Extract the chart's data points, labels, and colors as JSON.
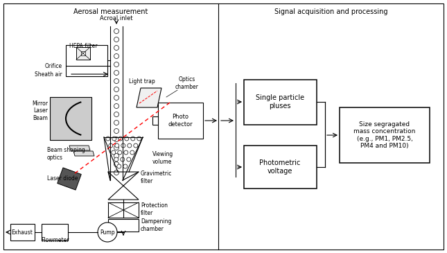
{
  "title_left": "Aerosal measurement",
  "title_right": "Signal acquisition and processing",
  "bg_color": "#ffffff",
  "line_color": "#000000",
  "labels": {
    "aerosol_inlet": "Acroal inlet",
    "hepa_filter": "HEPA filter",
    "orifice": "Orifice",
    "sheath_air": "Sheath air",
    "light_trap": "Light trap",
    "optics_chamber": "Optics\nchamber",
    "mirror": "Mirror",
    "laser_beam": "Laser\nBeam",
    "photo_detector": "Photo\ndetector",
    "beam_shaping": "Beam shaping\noptics",
    "viewing_volume": "Viewing\nvolume",
    "gravimetric_filter": "Gravimetric\nfilter",
    "laser_diode": "Laser diode",
    "protection_filter": "Protection\nfilter",
    "dampening_chamber": "Dampening\nchamber",
    "pump": "Pump",
    "exhaust": "Exhaust",
    "flowmeter": "Flowmeter",
    "single_particle": "Single particle\npluses",
    "photometric_voltage": "Photometric\nvoltage",
    "size_segregated": "Size segragated\nmass concentration\n(e.g., PM1, PM2.5,\nPM4 and PM10)"
  }
}
